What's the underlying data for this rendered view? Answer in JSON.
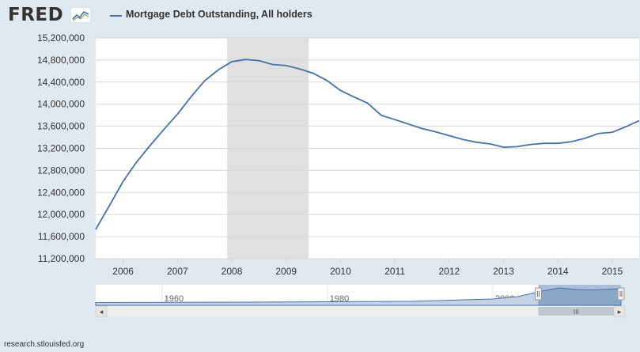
{
  "header": {
    "logo": "FRED",
    "logo_icon": "trend-line-icon",
    "series_label": "Mortgage Debt Outstanding, All holders"
  },
  "colors": {
    "series": "#4572a7",
    "recession": "#e0e0e0",
    "background": "#e1e9f0",
    "plot": "#ffffff"
  },
  "chart_data": {
    "type": "line",
    "title": "",
    "xlabel": "",
    "ylabel": "",
    "ylim": [
      11200000,
      15200000
    ],
    "xlim": [
      "2005-07-01",
      "2015-07-01"
    ],
    "yticks": [
      "11,200,000",
      "11,600,000",
      "12,000,000",
      "12,400,000",
      "12,800,000",
      "13,200,000",
      "13,600,000",
      "14,000,000",
      "14,400,000",
      "14,800,000",
      "15,200,000"
    ],
    "ytick_values": [
      11200000,
      11600000,
      12000000,
      12400000,
      12800000,
      13200000,
      13600000,
      14000000,
      14400000,
      14800000,
      15200000
    ],
    "xticks": [
      "2006",
      "2007",
      "2008",
      "2009",
      "2010",
      "2011",
      "2012",
      "2013",
      "2014",
      "2015"
    ],
    "recession": {
      "start": "2007-12-01",
      "end": "2009-06-01"
    },
    "grid": "horizontal",
    "legend": "top-left",
    "series": [
      {
        "name": "Mortgage Debt Outstanding, All holders",
        "x": [
          "2005-07-01",
          "2005-10-01",
          "2006-01-01",
          "2006-04-01",
          "2006-07-01",
          "2006-10-01",
          "2007-01-01",
          "2007-04-01",
          "2007-07-01",
          "2007-10-01",
          "2008-01-01",
          "2008-04-01",
          "2008-07-01",
          "2008-10-01",
          "2009-01-01",
          "2009-04-01",
          "2009-07-01",
          "2009-10-01",
          "2010-01-01",
          "2010-04-01",
          "2010-07-01",
          "2010-10-01",
          "2011-01-01",
          "2011-04-01",
          "2011-07-01",
          "2011-10-01",
          "2012-01-01",
          "2012-04-01",
          "2012-07-01",
          "2012-10-01",
          "2013-01-01",
          "2013-04-01",
          "2013-07-01",
          "2013-10-01",
          "2014-01-01",
          "2014-04-01",
          "2014-07-01",
          "2014-10-01",
          "2015-01-01",
          "2015-04-01",
          "2015-07-01"
        ],
        "y": [
          11730000,
          12160000,
          12600000,
          12950000,
          13250000,
          13540000,
          13820000,
          14130000,
          14420000,
          14620000,
          14770000,
          14810000,
          14790000,
          14720000,
          14700000,
          14640000,
          14560000,
          14430000,
          14250000,
          14130000,
          14020000,
          13800000,
          13720000,
          13640000,
          13560000,
          13500000,
          13430000,
          13360000,
          13310000,
          13280000,
          13220000,
          13230000,
          13270000,
          13290000,
          13290000,
          13320000,
          13380000,
          13470000,
          13490000,
          13590000,
          13700000
        ]
      }
    ]
  },
  "navigator": {
    "ticks": [
      "1960",
      "1980",
      "2000"
    ],
    "tick_years": [
      1960,
      1980,
      2000
    ],
    "range": [
      1952,
      2015.5
    ],
    "window": [
      2005.5,
      2015.5
    ],
    "scroll_left": "◂",
    "scroll_right": "▸",
    "grip": "III"
  },
  "footer": "research.stlouisfed.org"
}
